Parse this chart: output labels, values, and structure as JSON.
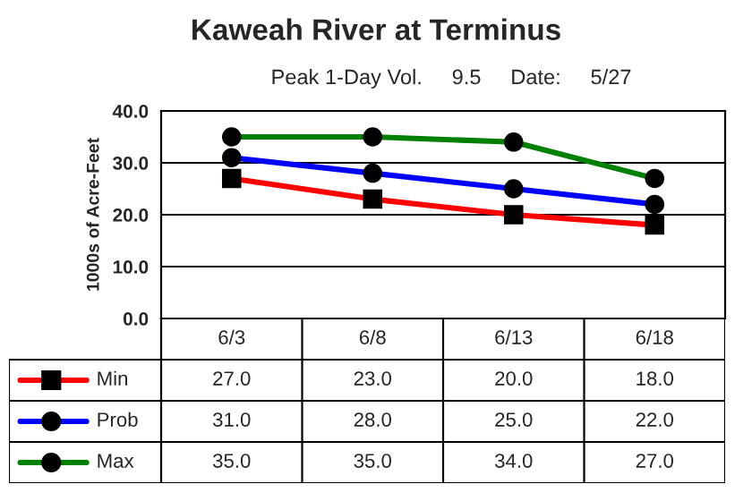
{
  "chart_data": {
    "type": "line",
    "title": "Kaweah River at Terminus",
    "subtitle": "Peak 1-Day Vol.     9.5     Date:     5/27",
    "ylabel": "1000s of Acre-Feet",
    "categories": [
      "6/3",
      "6/8",
      "6/13",
      "6/18"
    ],
    "series": [
      {
        "name": "Min",
        "color": "#ff0000",
        "marker": "square",
        "values": [
          27.0,
          23.0,
          20.0,
          18.0
        ],
        "value_labels": [
          "27.0",
          "23.0",
          "20.0",
          "18.0"
        ]
      },
      {
        "name": "Prob",
        "color": "#0000ff",
        "marker": "circle",
        "values": [
          31.0,
          28.0,
          25.0,
          22.0
        ],
        "value_labels": [
          "31.0",
          "28.0",
          "25.0",
          "22.0"
        ]
      },
      {
        "name": "Max",
        "color": "#008000",
        "marker": "circle",
        "values": [
          35.0,
          35.0,
          34.0,
          27.0
        ],
        "value_labels": [
          "35.0",
          "35.0",
          "34.0",
          "27.0"
        ]
      }
    ],
    "ylim": [
      0,
      40
    ],
    "yticks": [
      {
        "value": 0,
        "label": "0.0"
      },
      {
        "value": 10,
        "label": "10.0"
      },
      {
        "value": 20,
        "label": "20.0"
      },
      {
        "value": 30,
        "label": "30.0"
      },
      {
        "value": 40,
        "label": "40.0"
      }
    ],
    "grid": "y",
    "legend": "bottom",
    "line_style": "solid"
  }
}
